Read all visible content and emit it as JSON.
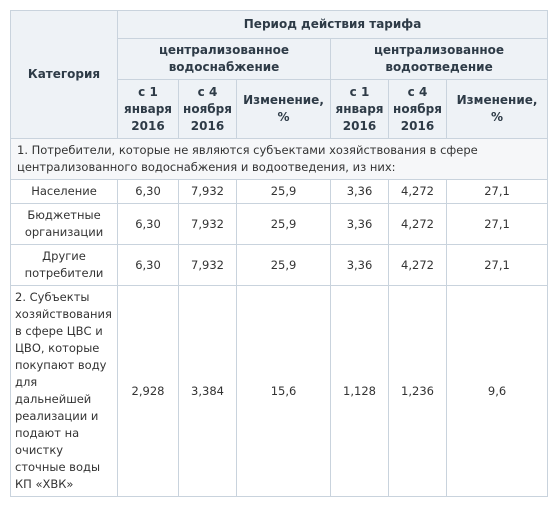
{
  "table": {
    "header": {
      "category": "Категория",
      "period": "Период действия тарифа",
      "groups": [
        "централизованное водоснабжение",
        "централизованное водоотведение"
      ],
      "columns": [
        "с 1 января 2016",
        "с 4 ноября 2016",
        "Изменение, %",
        "с 1 января 2016",
        "с 4 ноября 2016",
        "Изменение, %"
      ]
    },
    "rows": [
      "1. Потребители, которые не являются субъектами хозяйствования в сфере централизованного водоснабжения и водоотведения, из них:",
      [
        "Население",
        "6,30",
        "7,932",
        "25,9",
        "3,36",
        "4,272",
        "27,1"
      ],
      [
        "Бюджетные организации",
        "6,30",
        "7,932",
        "25,9",
        "3,36",
        "4,272",
        "27,1"
      ],
      [
        "Другие потребители",
        "6,30",
        "7,932",
        "25,9",
        "3,36",
        "4,272",
        "27,1"
      ],
      [
        "2. Субъекты хозяйствования в сфере ЦВС и ЦВО, которые покупают воду для дальнейшей реализации и подают на очистку сточные воды КП «ХВК»",
        "2,928",
        "3,384",
        "15,6",
        "1,128",
        "1,236",
        "9,6"
      ]
    ]
  }
}
